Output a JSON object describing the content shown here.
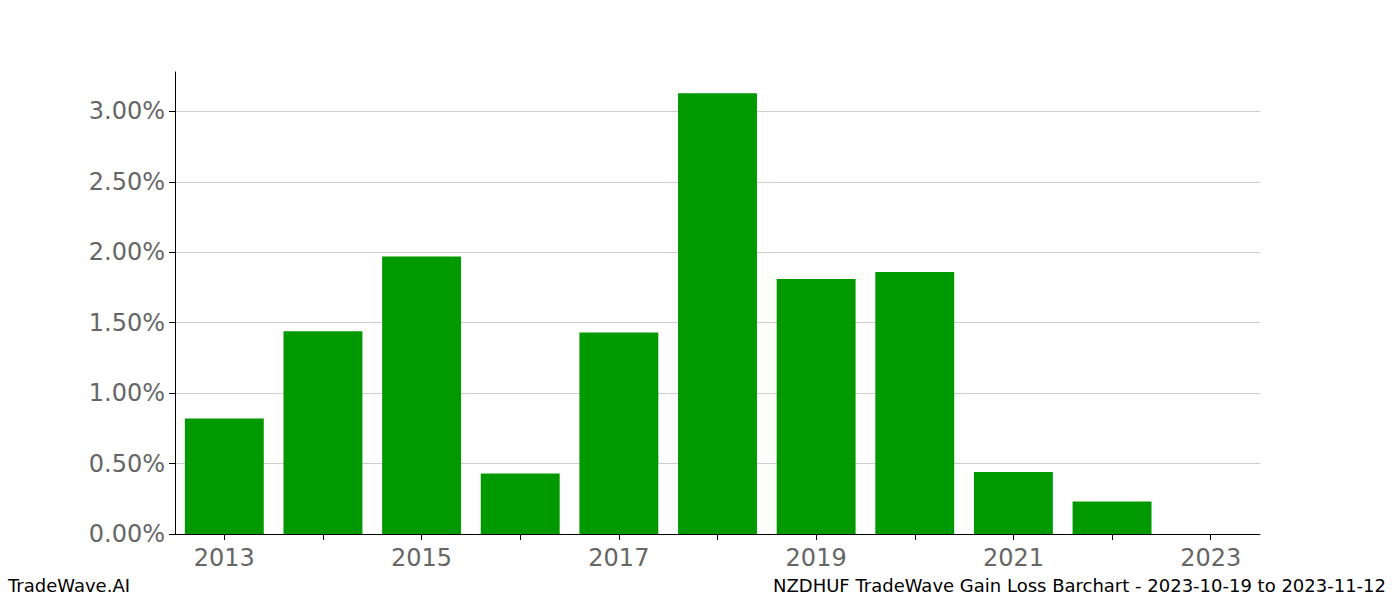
{
  "chart_data": {
    "type": "bar",
    "title": "NZDHUF TradeWave Gain Loss Barchart - 2023-10-19 to 2023-11-12",
    "annotations": [
      "TradeWave.AI"
    ],
    "categories": [
      "2013",
      null,
      "2015",
      null,
      "2017",
      null,
      "2019",
      null,
      "2021",
      null,
      "2023"
    ],
    "values": [
      0.82,
      1.44,
      1.97,
      0.43,
      1.43,
      3.13,
      1.81,
      1.86,
      0.44,
      0.23,
      null
    ],
    "color": "#009900",
    "ylim": [
      0,
      3.28
    ],
    "yticks": [
      {
        "value": 0,
        "label": "0.00%"
      },
      {
        "value": 0.5,
        "label": "0.50%"
      },
      {
        "value": 1,
        "label": "1.00%"
      },
      {
        "value": 1.5,
        "label": "1.50%"
      },
      {
        "value": 2,
        "label": "2.00%"
      },
      {
        "value": 2.5,
        "label": "2.50%"
      },
      {
        "value": 3,
        "label": "3.00%"
      }
    ],
    "grid": true
  }
}
